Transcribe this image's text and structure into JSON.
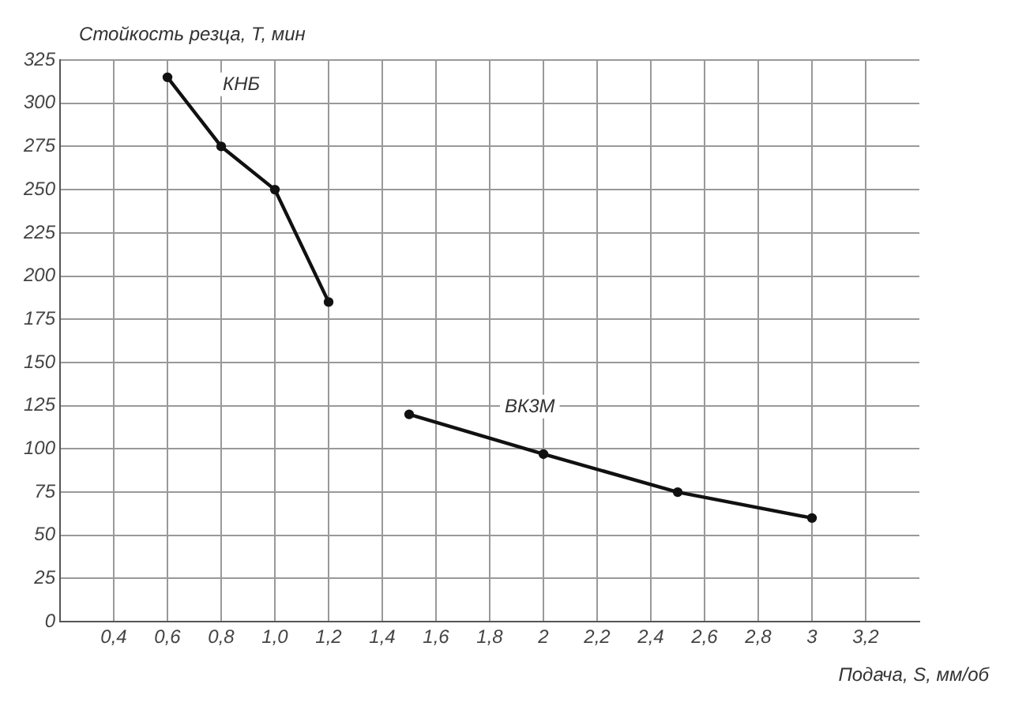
{
  "chart_data": {
    "type": "line",
    "xlabel": "Подача, S, мм/об",
    "ylabel": "Стойкость резца, T, мин",
    "series": [
      {
        "name": "КНБ",
        "color": "#111111",
        "x": [
          0.6,
          0.8,
          1.0,
          1.2
        ],
        "values": [
          315,
          275,
          250,
          185
        ]
      },
      {
        "name": "ВК3М",
        "color": "#111111",
        "x": [
          1.5,
          2,
          2.5,
          3
        ],
        "values": [
          120,
          97,
          75,
          60
        ]
      }
    ],
    "xlim": [
      0.2,
      3.4
    ],
    "xticks": [
      {
        "value": 0.4,
        "label": "0,4"
      },
      {
        "value": 0.6,
        "label": "0,6"
      },
      {
        "value": 0.8,
        "label": "0,8"
      },
      {
        "value": 1.0,
        "label": "1,0"
      },
      {
        "value": 1.2,
        "label": "1,2"
      },
      {
        "value": 1.4,
        "label": "1,4"
      },
      {
        "value": 1.6,
        "label": "1,6"
      },
      {
        "value": 1.8,
        "label": "1,8"
      },
      2,
      {
        "value": 2.2,
        "label": "2,2"
      },
      {
        "value": 2.4,
        "label": "2,4"
      },
      {
        "value": 2.6,
        "label": "2,6"
      },
      {
        "value": 2.8,
        "label": "2,8"
      },
      3,
      {
        "value": 3.2,
        "label": "3,2"
      }
    ],
    "ylim": [
      0,
      325
    ],
    "yticks": [
      0,
      25,
      50,
      75,
      100,
      125,
      150,
      175,
      200,
      225,
      250,
      275,
      300,
      325
    ],
    "grid": true,
    "legend": false,
    "marker": "circle",
    "line_style": "solid"
  }
}
